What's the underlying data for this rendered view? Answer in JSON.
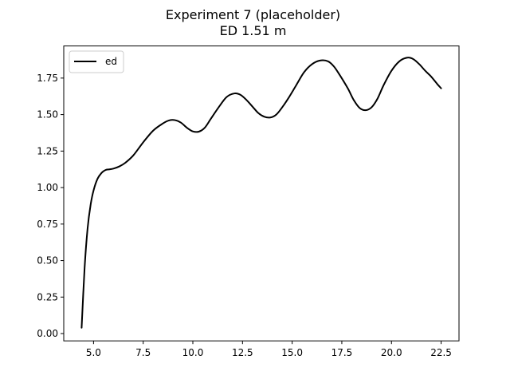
{
  "chart_data": {
    "type": "line",
    "title": "Experiment 7 (placeholder)",
    "subtitle": "ED 1.51 m",
    "xlabel": "",
    "ylabel": "",
    "xlim": [
      3.5,
      23.4
    ],
    "ylim": [
      -0.05,
      1.97
    ],
    "xticks": [
      5.0,
      7.5,
      10.0,
      12.5,
      15.0,
      17.5,
      20.0,
      22.5
    ],
    "xtick_labels": [
      "5.0",
      "7.5",
      "10.0",
      "12.5",
      "15.0",
      "17.5",
      "20.0",
      "22.5"
    ],
    "yticks": [
      0.0,
      0.25,
      0.5,
      0.75,
      1.0,
      1.25,
      1.5,
      1.75
    ],
    "ytick_labels": [
      "0.00",
      "0.25",
      "0.50",
      "0.75",
      "1.00",
      "1.25",
      "1.50",
      "1.75"
    ],
    "grid": false,
    "legend_position": "upper-left",
    "series": [
      {
        "name": "ed",
        "color": "#000000",
        "x": [
          4.4,
          4.55,
          4.7,
          4.85,
          5.0,
          5.2,
          5.4,
          5.6,
          5.8,
          6.0,
          6.3,
          6.6,
          7.0,
          7.5,
          8.0,
          8.5,
          8.8,
          9.1,
          9.4,
          9.7,
          10.0,
          10.3,
          10.6,
          10.9,
          11.3,
          11.7,
          12.1,
          12.4,
          12.7,
          13.0,
          13.3,
          13.6,
          13.9,
          14.2,
          14.5,
          14.8,
          15.2,
          15.6,
          16.0,
          16.4,
          16.8,
          17.1,
          17.4,
          17.8,
          18.1,
          18.4,
          18.7,
          19.0,
          19.3,
          19.6,
          20.0,
          20.4,
          20.8,
          21.1,
          21.4,
          21.7,
          22.0,
          22.3,
          22.5
        ],
        "y": [
          0.04,
          0.45,
          0.72,
          0.88,
          0.98,
          1.06,
          1.1,
          1.12,
          1.125,
          1.13,
          1.145,
          1.17,
          1.22,
          1.31,
          1.39,
          1.44,
          1.46,
          1.462,
          1.445,
          1.41,
          1.385,
          1.383,
          1.41,
          1.47,
          1.55,
          1.62,
          1.645,
          1.635,
          1.6,
          1.555,
          1.51,
          1.485,
          1.48,
          1.5,
          1.55,
          1.61,
          1.7,
          1.79,
          1.845,
          1.87,
          1.865,
          1.83,
          1.77,
          1.68,
          1.6,
          1.545,
          1.53,
          1.55,
          1.61,
          1.7,
          1.8,
          1.865,
          1.89,
          1.88,
          1.845,
          1.8,
          1.76,
          1.71,
          1.68
        ]
      }
    ]
  }
}
